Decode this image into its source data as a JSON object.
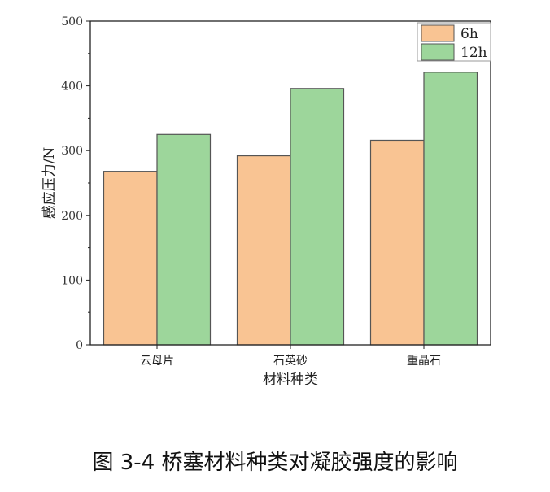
{
  "chart_data": {
    "type": "bar",
    "categories": [
      "云母片",
      "石英砂",
      "重晶石"
    ],
    "series": [
      {
        "name": "6h",
        "values": [
          268,
          292,
          316
        ],
        "color": "#f9c493"
      },
      {
        "name": "12h",
        "values": [
          325,
          396,
          421
        ],
        "color": "#9dd69b"
      }
    ],
    "xlabel": "材料种类",
    "ylabel": "感应压力/N",
    "ylim": [
      0,
      500
    ],
    "yticks": [
      0,
      100,
      200,
      300,
      400,
      500
    ],
    "legend": "top-right",
    "grid": false
  },
  "caption": "图 3-4  桥塞材料种类对凝胶强度的影响"
}
